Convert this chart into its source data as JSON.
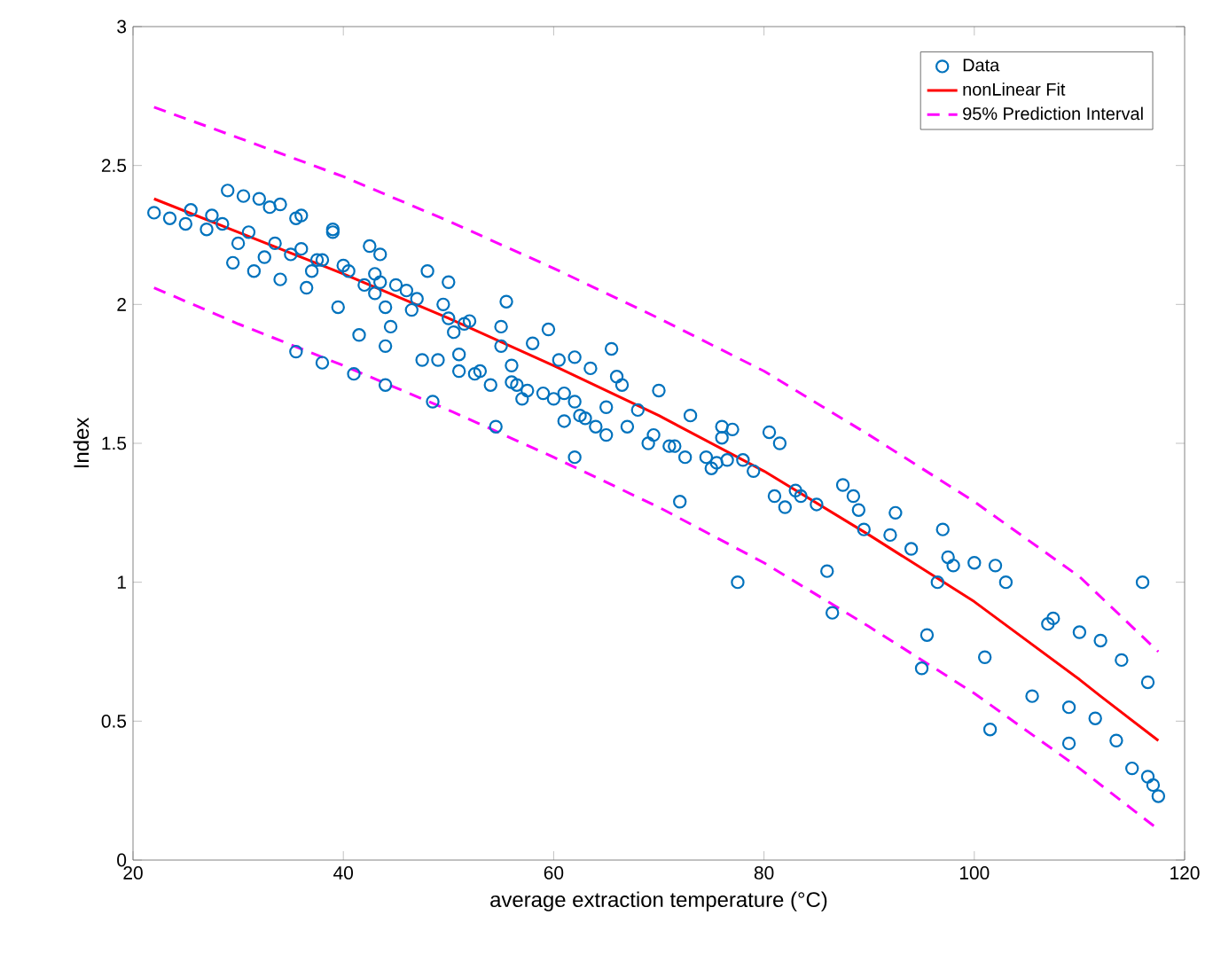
{
  "chart_data": {
    "type": "scatter",
    "xlabel": "average extraction temperature (°C)",
    "ylabel": "Index",
    "xlim": [
      20,
      120
    ],
    "ylim": [
      0,
      3
    ],
    "xticks": [
      20,
      40,
      60,
      80,
      100,
      120
    ],
    "yticks": [
      0,
      0.5,
      1,
      1.5,
      2,
      2.5,
      3
    ],
    "grid": false,
    "legend": "top right",
    "series": [
      {
        "name": "Data",
        "marker": "circle",
        "color": "#0072bd",
        "x": [
          22,
          23.5,
          25,
          25.5,
          27,
          27.5,
          28.5,
          29,
          29.5,
          30,
          30.5,
          31,
          31.5,
          32,
          32.5,
          33,
          33.5,
          34,
          34,
          35,
          35.5,
          35.5,
          36,
          36,
          36.5,
          37,
          37.5,
          38,
          38,
          39,
          39,
          39.5,
          40,
          40.5,
          41,
          41.5,
          42,
          42.5,
          43,
          43,
          43.5,
          43.5,
          44,
          44,
          44.5,
          44,
          45,
          46,
          46.5,
          47,
          47.5,
          48,
          48.5,
          49,
          49.5,
          50,
          50,
          50.5,
          51,
          51,
          51.5,
          52,
          52.5,
          53,
          54,
          54.5,
          55,
          55,
          55.5,
          56,
          56,
          56.5,
          57,
          57.5,
          58,
          59,
          59.5,
          60,
          60.5,
          61,
          61,
          62,
          62,
          62,
          62.5,
          63,
          63.5,
          64,
          65,
          65,
          65.5,
          66,
          66.5,
          67,
          68,
          69,
          69.5,
          70,
          71,
          71.5,
          72,
          72.5,
          73,
          74.5,
          75,
          75.5,
          76,
          76,
          76.5,
          77,
          77.5,
          78,
          79,
          80.5,
          81,
          81.5,
          82,
          83,
          83.5,
          85,
          86,
          86.5,
          87.5,
          88.5,
          89,
          89.5,
          92,
          92.5,
          94,
          95,
          95.5,
          96.5,
          97,
          97.5,
          98,
          100,
          101,
          101.5,
          102,
          103,
          105.5,
          107,
          107.5,
          109,
          109,
          110,
          111.5,
          112,
          113.5,
          114,
          115,
          116,
          116.5,
          116.5,
          117,
          117.5
        ],
        "values": [
          2.33,
          2.31,
          2.29,
          2.34,
          2.27,
          2.32,
          2.29,
          2.41,
          2.15,
          2.22,
          2.39,
          2.26,
          2.12,
          2.38,
          2.17,
          2.35,
          2.22,
          2.36,
          2.09,
          2.18,
          2.31,
          1.83,
          2.32,
          2.2,
          2.06,
          2.12,
          2.16,
          1.79,
          2.16,
          2.27,
          2.26,
          1.99,
          2.14,
          2.12,
          1.75,
          1.89,
          2.07,
          2.21,
          2.11,
          2.04,
          2.18,
          2.08,
          1.99,
          1.85,
          1.92,
          1.71,
          2.07,
          2.05,
          1.98,
          2.02,
          1.8,
          2.12,
          1.65,
          1.8,
          2.0,
          1.95,
          2.08,
          1.9,
          1.82,
          1.76,
          1.93,
          1.94,
          1.75,
          1.76,
          1.71,
          1.56,
          1.92,
          1.85,
          2.01,
          1.78,
          1.72,
          1.71,
          1.66,
          1.69,
          1.86,
          1.68,
          1.91,
          1.66,
          1.8,
          1.68,
          1.58,
          1.65,
          1.81,
          1.45,
          1.6,
          1.59,
          1.77,
          1.56,
          1.53,
          1.63,
          1.84,
          1.74,
          1.71,
          1.56,
          1.62,
          1.5,
          1.53,
          1.69,
          1.49,
          1.49,
          1.29,
          1.45,
          1.6,
          1.45,
          1.41,
          1.43,
          1.52,
          1.56,
          1.44,
          1.55,
          1.0,
          1.44,
          1.4,
          1.54,
          1.31,
          1.5,
          1.27,
          1.33,
          1.31,
          1.28,
          1.04,
          0.89,
          1.35,
          1.31,
          1.26,
          1.19,
          1.17,
          1.25,
          1.12,
          0.69,
          0.81,
          1.0,
          1.19,
          1.09,
          1.06,
          1.07,
          0.73,
          0.47,
          1.06,
          1.0,
          0.59,
          0.85,
          0.87,
          0.42,
          0.55,
          0.82,
          0.51,
          0.79,
          0.43,
          0.72,
          0.33,
          1.0,
          0.64,
          0.3,
          0.27,
          0.23
        ]
      },
      {
        "name": "nonLinear Fit",
        "type": "line",
        "line_style": "solid",
        "color": "#ff0000",
        "x": [
          22,
          30,
          40,
          50,
          60,
          70,
          80,
          90,
          100,
          110,
          112,
          117.5
        ],
        "values": [
          2.38,
          2.26,
          2.11,
          1.95,
          1.78,
          1.6,
          1.4,
          1.17,
          0.93,
          0.65,
          0.59,
          0.43
        ]
      },
      {
        "name": "95% Prediction Interval",
        "type": "line",
        "line_style": "dashed",
        "color": "#ff00ff",
        "x": [
          22,
          30,
          40,
          50,
          60,
          70,
          80,
          90,
          100,
          110,
          117.5
        ],
        "values": [
          2.71,
          2.6,
          2.46,
          2.3,
          2.13,
          1.95,
          1.76,
          1.53,
          1.29,
          1.02,
          0.75
        ]
      },
      {
        "type": "line",
        "line_style": "dashed",
        "color": "#ff00ff",
        "x": [
          22,
          30,
          40,
          50,
          60,
          70,
          80,
          90,
          100,
          110,
          117.5
        ],
        "values": [
          2.06,
          1.93,
          1.78,
          1.62,
          1.45,
          1.27,
          1.07,
          0.84,
          0.6,
          0.33,
          0.11
        ]
      }
    ]
  }
}
